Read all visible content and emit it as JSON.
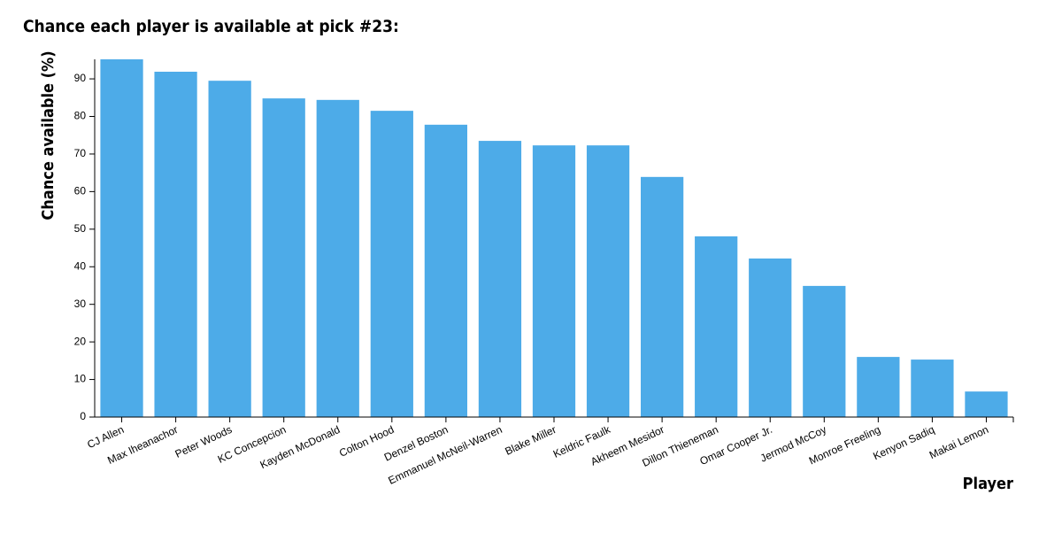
{
  "chart_data": {
    "type": "bar",
    "title": "Chance each player is available at pick #23:",
    "y_label": "Chance available (%)",
    "x_label": "Player",
    "categories": [
      "CJ Allen",
      "Max Iheanachor",
      "Peter Woods",
      "KC Concepcion",
      "Kayden McDonald",
      "Colton Hood",
      "Denzel Boston",
      "Emmanuel McNeil-Warren",
      "Blake Miller",
      "Keldric Faulk",
      "Akheem Mesidor",
      "Dillon Thieneman",
      "Omar Cooper Jr.",
      "Jermod McCoy",
      "Monroe Freeling",
      "Kenyon Sadiq",
      "Makai Lemon"
    ],
    "values": [
      95.2,
      91.9,
      89.5,
      84.8,
      84.4,
      81.5,
      77.8,
      73.5,
      72.3,
      72.3,
      63.9,
      48.1,
      42.2,
      34.9,
      16.0,
      15.3,
      6.8
    ],
    "color": "#4dabe8",
    "ylim": [
      0,
      95.2
    ],
    "yticks": [
      0,
      10,
      20,
      30,
      40,
      50,
      60,
      70,
      80,
      90
    ]
  }
}
